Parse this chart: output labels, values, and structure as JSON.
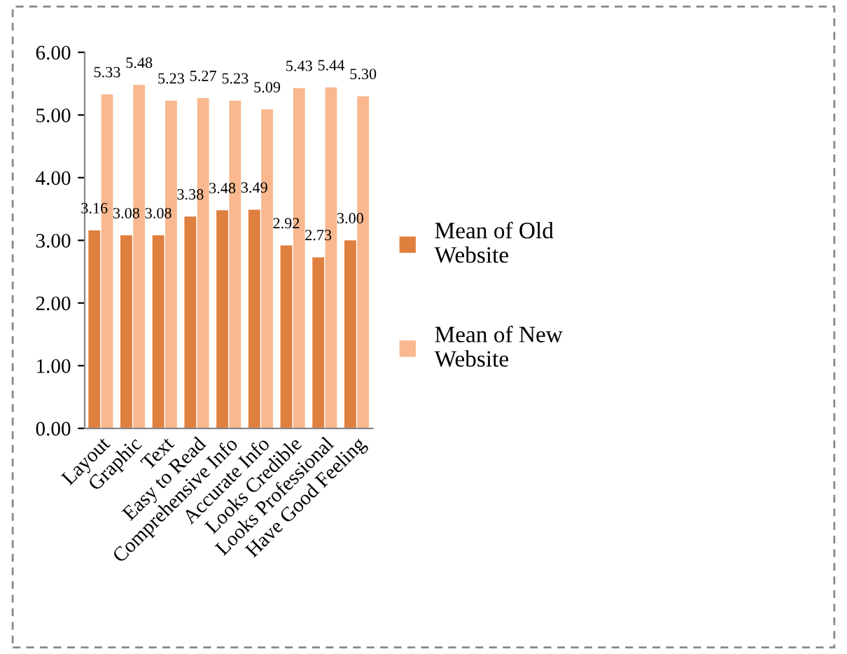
{
  "chart_data": {
    "type": "bar",
    "categories": [
      "Layout",
      "Graphic",
      "Text",
      "Easy to Read",
      "Comprehensive Info",
      "Accurate Info",
      "Looks Credible",
      "Looks Professional",
      "Have Good Feeling"
    ],
    "series": [
      {
        "name": "Mean of Old Website",
        "color": "#e0803f",
        "values": [
          3.16,
          3.08,
          3.08,
          3.38,
          3.48,
          3.49,
          2.92,
          2.73,
          3.0
        ],
        "value_labels": [
          "3.16",
          "3.08",
          "3.08",
          "3.38",
          "3.48",
          "3.49",
          "2.92",
          "2.73",
          "3.00"
        ]
      },
      {
        "name": "Mean of New Website",
        "color": "#f9b88f",
        "values": [
          5.33,
          5.48,
          5.23,
          5.27,
          5.23,
          5.09,
          5.43,
          5.44,
          5.3
        ],
        "value_labels": [
          "5.33",
          "5.48",
          "5.23",
          "5.27",
          "5.23",
          "5.09",
          "5.43",
          "5.44",
          "5.30"
        ]
      }
    ],
    "ylim": [
      0,
      6
    ],
    "yticks": [
      {
        "value": 0,
        "label": "0.00"
      },
      {
        "value": 1,
        "label": "1.00"
      },
      {
        "value": 2,
        "label": "2.00"
      },
      {
        "value": 3,
        "label": "3.00"
      },
      {
        "value": 4,
        "label": "4.00"
      },
      {
        "value": 5,
        "label": "5.00"
      },
      {
        "value": 6,
        "label": "6.00"
      }
    ],
    "grid": false,
    "legend": "right"
  }
}
